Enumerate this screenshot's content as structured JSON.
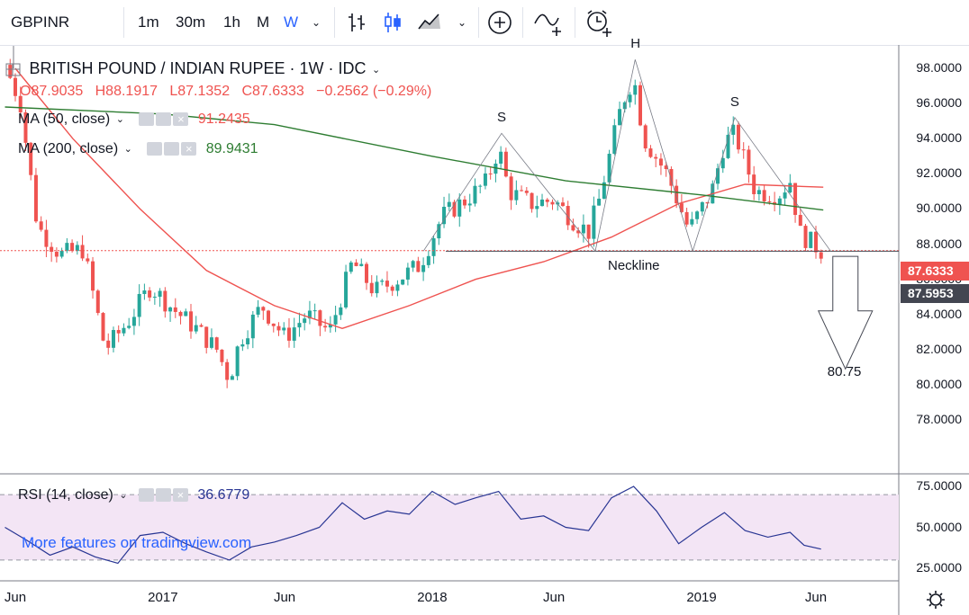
{
  "toolbar": {
    "symbol": "GBPINR",
    "intervals": [
      "1m",
      "30m",
      "1h",
      "M",
      "W"
    ],
    "active_interval": "W",
    "icons": [
      "bar-chart-icon",
      "candles-icon",
      "area-chart-icon",
      "chevron-down-icon",
      "add-compare-icon",
      "indicators-icon",
      "alert-clock-icon"
    ]
  },
  "legend": {
    "title": "BRITISH POUND / INDIAN RUPEE · 1W · IDC",
    "ohlc": {
      "o": "O87.9035",
      "h": "H88.1917",
      "l": "L87.1352",
      "c": "C87.6333",
      "chg": "−0.2562 (−0.29%)"
    },
    "ma50": {
      "label": "MA (50, close)",
      "value": "91.2435",
      "color": "#ef5350"
    },
    "ma200": {
      "label": "MA (200, close)",
      "value": "89.9431",
      "color": "#2e7d32"
    },
    "rsi": {
      "label": "RSI (14, close)",
      "value": "36.6779",
      "color": "#283593"
    }
  },
  "price_labels": {
    "current": "87.6333",
    "current_color": "#ef5350",
    "neckline": "87.5953",
    "neckline_color": "#434651"
  },
  "watermark": "More features on tradingview.com",
  "chart_data": [
    {
      "type": "candlestick",
      "title": "BRITISH POUND / INDIAN RUPEE · 1W · IDC",
      "ylim": [
        77,
        99
      ],
      "yticks": [
        "78.0000",
        "80.0000",
        "82.0000",
        "84.0000",
        "86.0000",
        "88.0000",
        "90.0000",
        "92.0000",
        "94.0000",
        "96.0000",
        "98.0000"
      ],
      "xticks": [
        "Jun",
        "2017",
        "Jun",
        "2018",
        "Jun",
        "2019",
        "Jun"
      ],
      "x_dates": [
        "2016-06-15",
        "2017-01-01",
        "2017-06-15",
        "2018-01-01",
        "2018-06-15",
        "2019-01-01",
        "2019-06-05"
      ],
      "close_series": [
        [
          "2016-06-01",
          98.2
        ],
        [
          "2016-06-22",
          96.0
        ],
        [
          "2016-07-15",
          89.0
        ],
        [
          "2016-08-15",
          87.4
        ],
        [
          "2016-09-15",
          87.7
        ],
        [
          "2016-10-15",
          82.0
        ],
        [
          "2016-11-15",
          83.6
        ],
        [
          "2016-12-15",
          85.6
        ],
        [
          "2017-01-15",
          84.3
        ],
        [
          "2017-02-15",
          83.2
        ],
        [
          "2017-03-15",
          82.0
        ],
        [
          "2017-04-01",
          80.3
        ],
        [
          "2017-04-15",
          82.5
        ],
        [
          "2017-05-15",
          84.5
        ],
        [
          "2017-06-15",
          82.7
        ],
        [
          "2017-07-15",
          84.0
        ],
        [
          "2017-08-15",
          83.0
        ],
        [
          "2017-09-15",
          87.0
        ],
        [
          "2017-10-15",
          85.3
        ],
        [
          "2017-11-15",
          86.0
        ],
        [
          "2017-12-15",
          86.8
        ],
        [
          "2018-01-15",
          89.6
        ],
        [
          "2018-02-15",
          90.5
        ],
        [
          "2018-03-15",
          91.5
        ],
        [
          "2018-04-01",
          93.5
        ],
        [
          "2018-04-15",
          91.0
        ],
        [
          "2018-05-15",
          90.3
        ],
        [
          "2018-06-15",
          90.5
        ],
        [
          "2018-07-15",
          89.2
        ],
        [
          "2018-08-01",
          88.7
        ],
        [
          "2018-08-15",
          90.5
        ],
        [
          "2018-09-15",
          96.0
        ],
        [
          "2018-10-01",
          97.5
        ],
        [
          "2018-10-15",
          94.0
        ],
        [
          "2018-11-15",
          92.0
        ],
        [
          "2018-12-15",
          88.8
        ],
        [
          "2019-01-15",
          91.0
        ],
        [
          "2019-02-01",
          93.8
        ],
        [
          "2019-02-15",
          94.3
        ],
        [
          "2019-03-15",
          91.0
        ],
        [
          "2019-04-15",
          90.8
        ],
        [
          "2019-05-01",
          91.6
        ],
        [
          "2019-05-15",
          88.6
        ],
        [
          "2019-06-01",
          88.0
        ],
        [
          "2019-06-12",
          87.63
        ]
      ],
      "series": [
        {
          "name": "MA (50, close)",
          "color": "#ef5350",
          "values": [
            [
              "2016-06-15",
              98.0
            ],
            [
              "2016-09-01",
              94.0
            ],
            [
              "2016-12-01",
              90.0
            ],
            [
              "2017-03-01",
              86.5
            ],
            [
              "2017-06-01",
              84.5
            ],
            [
              "2017-09-01",
              83.2
            ],
            [
              "2017-12-01",
              84.5
            ],
            [
              "2018-03-01",
              86.0
            ],
            [
              "2018-06-01",
              87.0
            ],
            [
              "2018-09-01",
              88.4
            ],
            [
              "2018-12-01",
              90.3
            ],
            [
              "2019-03-01",
              91.4
            ],
            [
              "2019-06-15",
              91.24
            ]
          ]
        },
        {
          "name": "MA (200, close)",
          "color": "#2e7d32",
          "values": [
            [
              "2016-06-01",
              95.8
            ],
            [
              "2017-01-01",
              95.4
            ],
            [
              "2017-06-01",
              94.8
            ],
            [
              "2018-01-01",
              93.0
            ],
            [
              "2018-07-01",
              91.6
            ],
            [
              "2019-01-01",
              90.8
            ],
            [
              "2019-06-15",
              89.94
            ]
          ]
        }
      ],
      "annotations": [
        {
          "text": "S",
          "date": "2018-04-05",
          "price": 94.3
        },
        {
          "text": "H",
          "date": "2018-10-03",
          "price": 98.5
        },
        {
          "text": "S",
          "date": "2019-02-15",
          "price": 95.2
        },
        {
          "text": "Neckline",
          "price": 87.6
        },
        {
          "text": "80.75",
          "price": 80.75
        }
      ]
    },
    {
      "type": "line",
      "title": "RSI (14, close)",
      "ylim": [
        20,
        77
      ],
      "yticks": [
        "25.0000",
        "50.0000",
        "75.0000"
      ],
      "band": [
        30,
        70
      ],
      "series": [
        {
          "name": "RSI (14, close)",
          "color": "#283593",
          "values": [
            [
              "2016-06-01",
              50
            ],
            [
              "2016-07-01",
              42
            ],
            [
              "2016-08-01",
              33
            ],
            [
              "2016-09-01",
              38
            ],
            [
              "2016-10-01",
              32
            ],
            [
              "2016-11-01",
              28
            ],
            [
              "2016-12-01",
              45
            ],
            [
              "2017-01-01",
              47
            ],
            [
              "2017-02-01",
              40
            ],
            [
              "2017-03-01",
              35
            ],
            [
              "2017-04-01",
              30
            ],
            [
              "2017-05-01",
              38
            ],
            [
              "2017-06-01",
              41
            ],
            [
              "2017-07-01",
              45
            ],
            [
              "2017-08-01",
              50
            ],
            [
              "2017-09-01",
              65
            ],
            [
              "2017-10-01",
              55
            ],
            [
              "2017-11-01",
              60
            ],
            [
              "2017-12-01",
              58
            ],
            [
              "2018-01-01",
              72
            ],
            [
              "2018-02-01",
              64
            ],
            [
              "2018-03-01",
              68
            ],
            [
              "2018-04-01",
              72
            ],
            [
              "2018-05-01",
              55
            ],
            [
              "2018-06-01",
              57
            ],
            [
              "2018-07-01",
              50
            ],
            [
              "2018-08-01",
              48
            ],
            [
              "2018-09-01",
              68
            ],
            [
              "2018-10-01",
              75
            ],
            [
              "2018-11-01",
              60
            ],
            [
              "2018-12-01",
              40
            ],
            [
              "2019-01-01",
              50
            ],
            [
              "2019-02-01",
              59
            ],
            [
              "2019-03-01",
              48
            ],
            [
              "2019-04-01",
              44
            ],
            [
              "2019-05-01",
              47
            ],
            [
              "2019-05-20",
              39
            ],
            [
              "2019-06-12",
              36.68
            ]
          ]
        }
      ]
    }
  ]
}
